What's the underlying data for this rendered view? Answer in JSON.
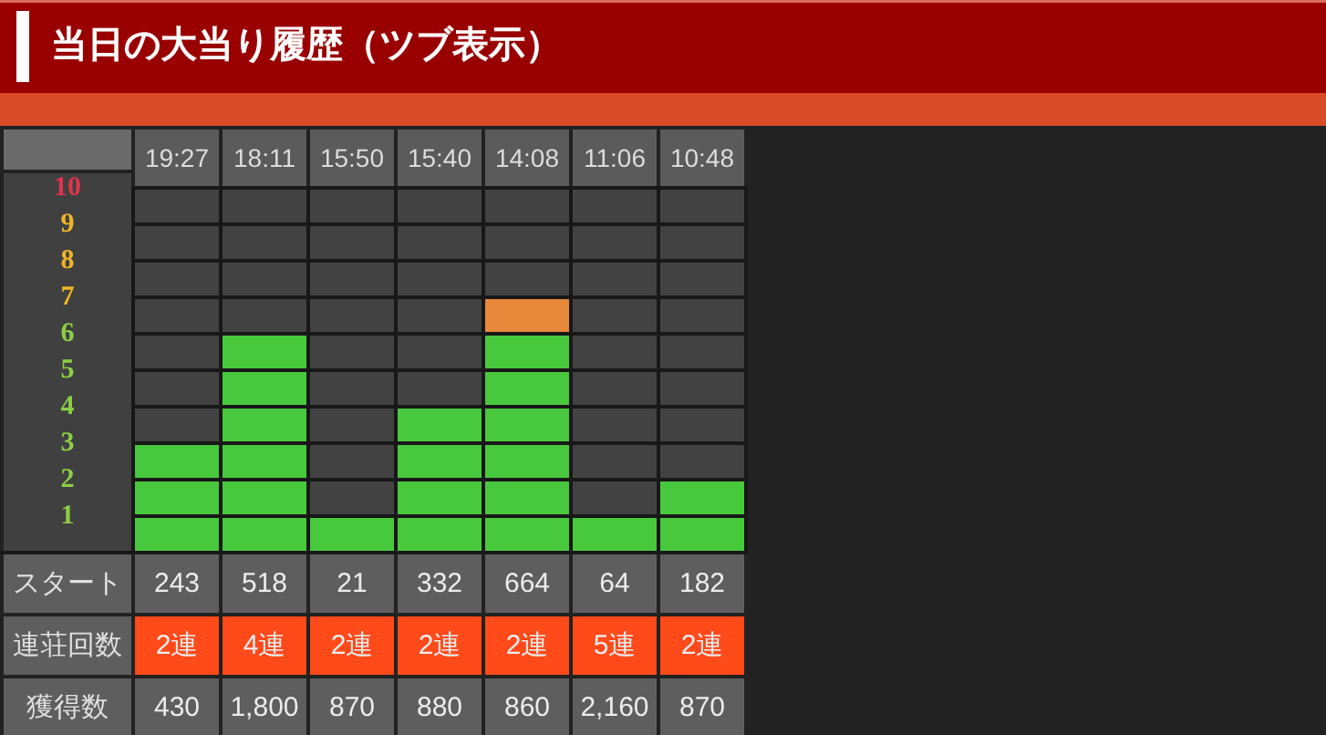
{
  "chart_data": [
    {
      "type": "bar",
      "title": "当日の大当り履歴（ツブ表示）",
      "categories": [
        "19:27",
        "18:11",
        "15:50",
        "15:40",
        "14:08",
        "11:06",
        "10:48"
      ],
      "stacked": true,
      "series": [
        {
          "color": "#48c83c",
          "values": [
            3,
            6,
            1,
            4,
            6,
            1,
            2
          ]
        },
        {
          "color": "#e8883a",
          "values": [
            null,
            null,
            null,
            null,
            1,
            null,
            null
          ]
        }
      ],
      "ylim": [
        0,
        10
      ],
      "yticks": [
        1,
        2,
        3,
        4,
        5,
        6,
        7,
        8,
        9,
        10
      ],
      "grid": true
    },
    {
      "type": "heatmap",
      "categories": [
        null,
        null,
        null,
        null,
        null,
        null,
        null
      ],
      "y_categories": [
        "スタート",
        "連荘回数",
        "獲得数"
      ],
      "tick_labels": "y",
      "cells": [
        [
          null,
          null,
          null,
          null,
          null,
          null,
          null
        ],
        [
          null,
          null,
          null,
          null,
          null,
          null,
          null
        ],
        [
          null,
          null,
          null,
          null,
          null,
          null,
          null
        ]
      ],
      "cell_labels": [
        [
          "243",
          "518",
          "21",
          "332",
          "664",
          "64",
          "182"
        ],
        [
          "2連",
          "4連",
          "2連",
          "2連",
          "2連",
          "5連",
          "2連"
        ],
        [
          "430",
          "1,800",
          "870",
          "880",
          "860",
          "2,160",
          "870"
        ]
      ]
    }
  ]
}
